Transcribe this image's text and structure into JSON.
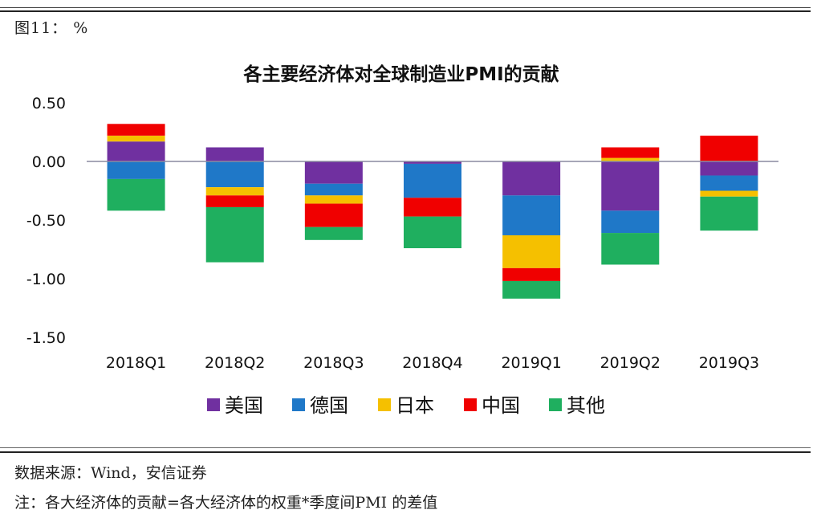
{
  "figure_label": "图11：  %",
  "source_note": "数据来源：Wind，安信证券",
  "formula_note": "注：各大经济体的贡献=各大经济体的权重*季度间PMI 的差值",
  "colors": {
    "us": "#7030A0",
    "de": "#1F78C8",
    "jp": "#F5C000",
    "cn": "#F00000",
    "other": "#1FAF5F",
    "zero_line": "#8a8aa0"
  },
  "chart_data": {
    "type": "bar",
    "stacked": true,
    "title": "各主要经济体对全球制造业PMI的贡献",
    "xlabel": "",
    "ylabel": "",
    "categories": [
      "2018Q1",
      "2018Q2",
      "2018Q3",
      "2018Q4",
      "2019Q1",
      "2019Q2",
      "2019Q3"
    ],
    "ylim": [
      -1.5,
      0.5
    ],
    "yticks": [
      0.5,
      0.0,
      -0.5,
      -1.0,
      -1.5
    ],
    "ytick_labels": [
      "0.50",
      "0.00",
      "-0.50",
      "-1.00",
      "-1.50"
    ],
    "grid": false,
    "legend_position": "bottom",
    "series": [
      {
        "name": "美国",
        "key": "us",
        "values": [
          0.17,
          0.12,
          -0.19,
          -0.02,
          -0.29,
          -0.42,
          -0.12
        ]
      },
      {
        "name": "德国",
        "key": "de",
        "values": [
          -0.15,
          -0.22,
          -0.1,
          -0.29,
          -0.34,
          -0.19,
          -0.13
        ]
      },
      {
        "name": "日本",
        "key": "jp",
        "values": [
          0.05,
          -0.07,
          -0.07,
          0.0,
          -0.28,
          0.03,
          -0.05
        ]
      },
      {
        "name": "中国",
        "key": "cn",
        "values": [
          0.1,
          -0.1,
          -0.2,
          -0.16,
          -0.11,
          0.09,
          0.22
        ]
      },
      {
        "name": "其他",
        "key": "other",
        "values": [
          -0.27,
          -0.47,
          -0.11,
          -0.27,
          -0.15,
          -0.27,
          -0.29
        ]
      }
    ]
  }
}
